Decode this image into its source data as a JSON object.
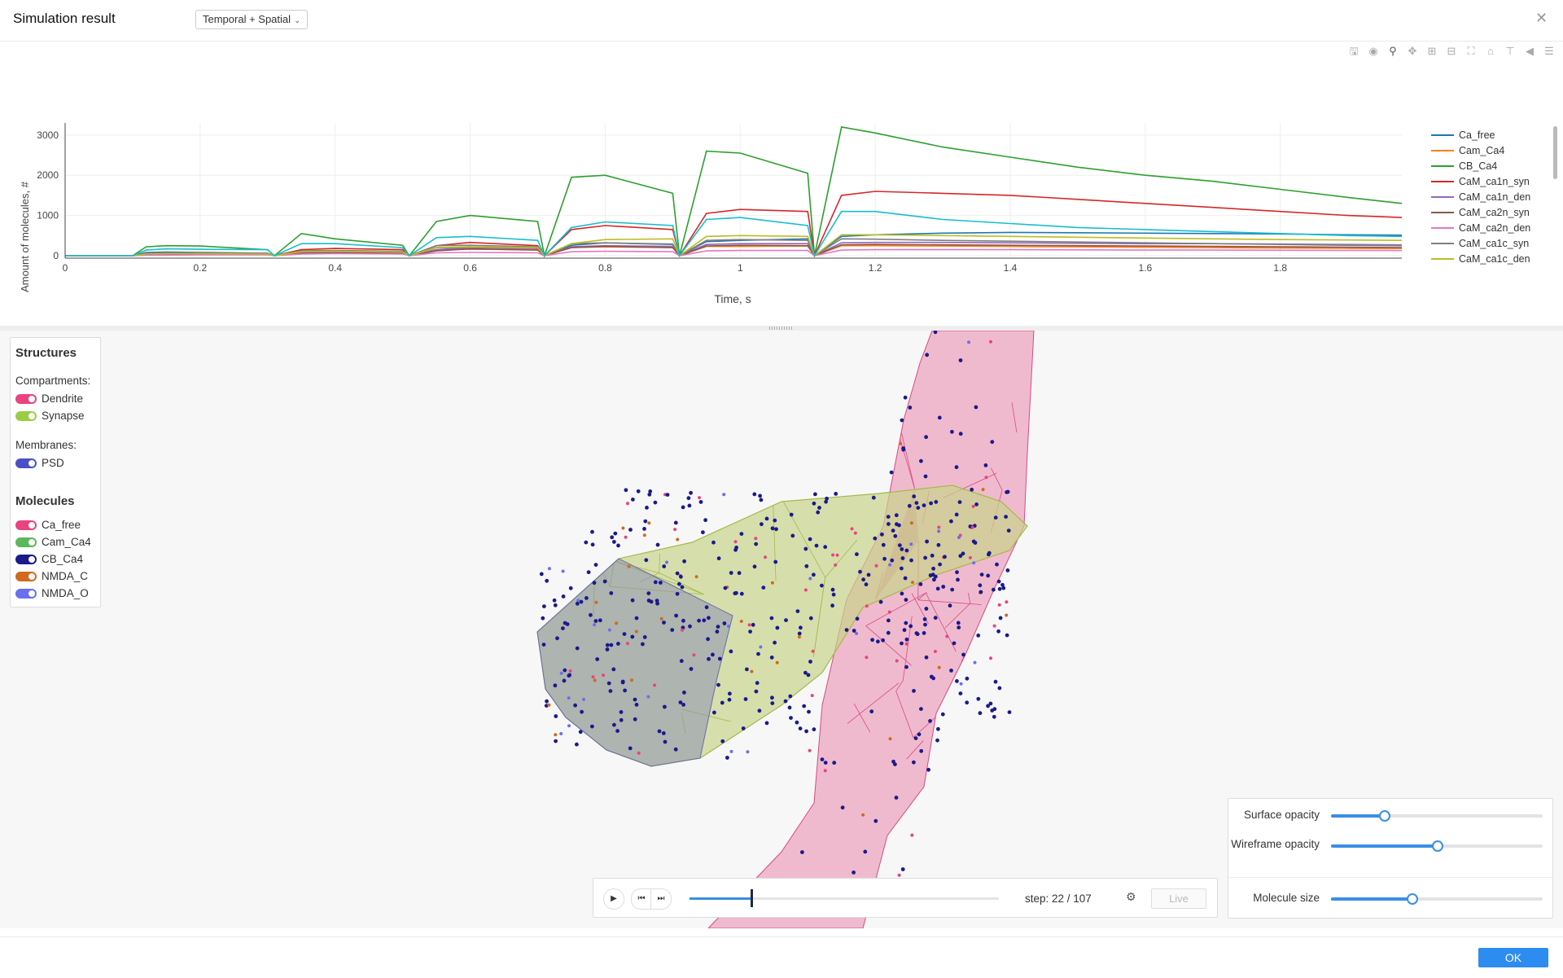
{
  "header": {
    "title": "Simulation result",
    "mode": "Temporal + Spatial"
  },
  "chart": {
    "modebar_icons": [
      "save-icon",
      "camera-icon",
      "zoom-icon",
      "pan-icon",
      "zoom-in-icon",
      "zoom-out-icon",
      "autoscale-icon",
      "reset-axes-icon",
      "spike-lines-icon",
      "hover-closest-icon",
      "hover-compare-icon"
    ],
    "yticks": [
      "0",
      "1000",
      "2000",
      "3000"
    ],
    "xticks": [
      "0",
      "0.2",
      "0.4",
      "0.6",
      "0.8",
      "1",
      "1.2",
      "1.4",
      "1.6",
      "1.8"
    ]
  },
  "chart_data": {
    "type": "line",
    "xlabel": "Time, s",
    "ylabel": "Amount of molecules, #",
    "xlim": [
      0,
      1.98
    ],
    "ylim": [
      0,
      3300
    ],
    "grid": true,
    "legend_position": "right",
    "x": [
      0,
      0.1,
      0.12,
      0.15,
      0.2,
      0.3,
      0.31,
      0.35,
      0.4,
      0.5,
      0.51,
      0.55,
      0.6,
      0.7,
      0.71,
      0.75,
      0.8,
      0.9,
      0.91,
      0.95,
      1.0,
      1.1,
      1.11,
      1.15,
      1.2,
      1.3,
      1.4,
      1.5,
      1.6,
      1.7,
      1.8,
      1.9,
      1.98
    ],
    "series": [
      {
        "name": "Ca_free",
        "color": "#1f77b4",
        "values": [
          0,
          0,
          80,
          90,
          80,
          60,
          0,
          120,
          110,
          70,
          0,
          200,
          200,
          200,
          0,
          260,
          320,
          280,
          0,
          350,
          380,
          420,
          0,
          480,
          520,
          560,
          580,
          570,
          560,
          550,
          540,
          520,
          510
        ]
      },
      {
        "name": "Cam_Ca4",
        "color": "#ff7f0e",
        "values": [
          0,
          0,
          40,
          60,
          50,
          40,
          0,
          90,
          90,
          60,
          0,
          150,
          160,
          150,
          0,
          200,
          220,
          200,
          0,
          230,
          230,
          240,
          0,
          250,
          250,
          240,
          230,
          220,
          210,
          200,
          190,
          185,
          180
        ]
      },
      {
        "name": "CB_Ca4",
        "color": "#2ca02c",
        "values": [
          0,
          0,
          220,
          250,
          240,
          150,
          0,
          550,
          420,
          260,
          0,
          850,
          1000,
          850,
          0,
          1950,
          2000,
          1550,
          0,
          2600,
          2550,
          2050,
          0,
          3200,
          3050,
          2700,
          2450,
          2200,
          2000,
          1850,
          1650,
          1450,
          1300
        ]
      },
      {
        "name": "CaM_ca1n_syn",
        "color": "#d62728",
        "values": [
          0,
          0,
          20,
          30,
          40,
          50,
          0,
          150,
          180,
          150,
          0,
          250,
          330,
          250,
          0,
          650,
          750,
          650,
          0,
          1050,
          1150,
          1100,
          0,
          1500,
          1600,
          1550,
          1500,
          1400,
          1300,
          1200,
          1100,
          1000,
          950
        ]
      },
      {
        "name": "CaM_ca1n_den",
        "color": "#9467bd",
        "values": [
          0,
          0,
          30,
          40,
          40,
          40,
          0,
          80,
          100,
          80,
          0,
          150,
          200,
          180,
          0,
          220,
          250,
          230,
          0,
          280,
          300,
          300,
          0,
          320,
          330,
          330,
          320,
          310,
          300,
          300,
          290,
          280,
          270
        ]
      },
      {
        "name": "CaM_ca2n_syn",
        "color": "#8c564b",
        "values": [
          0,
          0,
          30,
          40,
          40,
          30,
          0,
          60,
          70,
          60,
          0,
          120,
          170,
          140,
          0,
          200,
          230,
          200,
          0,
          240,
          260,
          250,
          0,
          270,
          280,
          270,
          260,
          250,
          240,
          230,
          220,
          210,
          200
        ]
      },
      {
        "name": "CaM_ca2n_den",
        "color": "#e377c2",
        "values": [
          0,
          0,
          10,
          15,
          20,
          20,
          0,
          40,
          50,
          40,
          0,
          70,
          80,
          70,
          0,
          100,
          110,
          100,
          0,
          120,
          130,
          130,
          0,
          140,
          150,
          150,
          150,
          145,
          140,
          140,
          135,
          130,
          130
        ]
      },
      {
        "name": "CaM_ca1c_syn",
        "color": "#7f7f7f",
        "values": [
          0,
          0,
          60,
          70,
          70,
          60,
          0,
          120,
          130,
          110,
          0,
          250,
          260,
          220,
          0,
          300,
          320,
          290,
          0,
          380,
          400,
          380,
          0,
          420,
          410,
          380,
          360,
          340,
          320,
          300,
          280,
          260,
          250
        ]
      },
      {
        "name": "CaM_ca1c_den",
        "color": "#bcbd22",
        "values": [
          0,
          0,
          40,
          50,
          50,
          40,
          0,
          100,
          110,
          90,
          0,
          200,
          220,
          200,
          0,
          300,
          400,
          420,
          0,
          480,
          500,
          480,
          0,
          520,
          520,
          500,
          480,
          460,
          440,
          420,
          400,
          390,
          380
        ]
      },
      {
        "name": "",
        "color": "#17becf",
        "values": [
          0,
          0,
          140,
          170,
          160,
          150,
          0,
          300,
          300,
          200,
          0,
          450,
          480,
          380,
          0,
          700,
          840,
          750,
          0,
          900,
          950,
          750,
          0,
          1100,
          1100,
          900,
          800,
          700,
          650,
          600,
          550,
          500,
          480
        ]
      }
    ]
  },
  "structures": {
    "title": "Structures",
    "compartments_label": "Compartments:",
    "compartments": [
      {
        "label": "Dendrite",
        "color": "#e8447f"
      },
      {
        "label": "Synapse",
        "color": "#9acd45"
      }
    ],
    "membranes_label": "Membranes:",
    "membranes": [
      {
        "label": "PSD",
        "color": "#4b4fc7"
      }
    ],
    "molecules_title": "Molecules",
    "molecules": [
      {
        "label": "Ca_free",
        "color": "#e8447f"
      },
      {
        "label": "Cam_Ca4",
        "color": "#5cb85c"
      },
      {
        "label": "CB_Ca4",
        "color": "#1a1a8c"
      },
      {
        "label": "NMDA_C",
        "color": "#d2691e"
      },
      {
        "label": "NMDA_O",
        "color": "#6a6ff0"
      }
    ]
  },
  "controls": {
    "surface_opacity_label": "Surface opacity",
    "surface_opacity": 0.25,
    "wireframe_opacity_label": "Wireframe opacity",
    "wireframe_opacity": 0.5,
    "molecule_size_label": "Molecule size",
    "molecule_size": 0.38
  },
  "player": {
    "step_text": "step: 22 / 107",
    "progress": 0.2,
    "live_label": "Live"
  },
  "footer": {
    "ok_label": "OK"
  }
}
